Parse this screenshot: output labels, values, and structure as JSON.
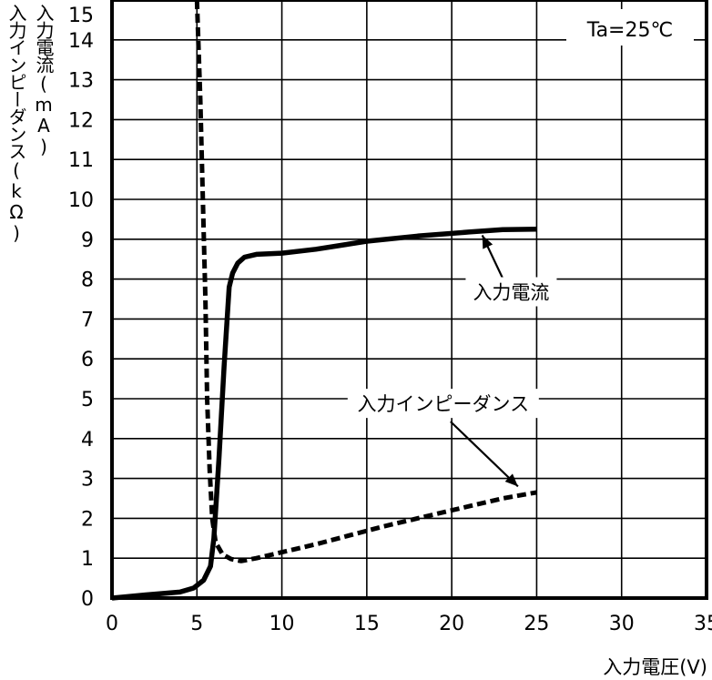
{
  "chart_data": {
    "type": "line",
    "xlabel": "入力電圧(V)",
    "ylabels": [
      "入力電流(mA)",
      "入力インピーダンス(kΩ)"
    ],
    "xlim": [
      0,
      35
    ],
    "ylim": [
      0,
      15
    ],
    "x_ticks": [
      "0",
      "5",
      "10",
      "15",
      "20",
      "25",
      "30",
      "35"
    ],
    "y_ticks": [
      "0",
      "1",
      "2",
      "3",
      "4",
      "5",
      "6",
      "7",
      "8",
      "9",
      "10",
      "11",
      "12",
      "13",
      "14",
      "15"
    ],
    "grid": true,
    "condition": "Ta=25℃",
    "series": [
      {
        "name": "入力電流",
        "style": "solid",
        "color": "#000000",
        "x": [
          0,
          2,
          4,
          4.8,
          5.4,
          5.8,
          6.0,
          6.3,
          6.6,
          6.9,
          7.1,
          7.4,
          7.8,
          8.5,
          10,
          12,
          15,
          18,
          21,
          23,
          25
        ],
        "y": [
          0,
          0.08,
          0.15,
          0.25,
          0.45,
          0.8,
          1.5,
          3.5,
          5.8,
          7.8,
          8.15,
          8.4,
          8.55,
          8.62,
          8.65,
          8.75,
          8.95,
          9.08,
          9.18,
          9.24,
          9.25
        ]
      },
      {
        "name": "入力インピーダンス",
        "style": "dashed",
        "color": "#000000",
        "x": [
          5.0,
          5.2,
          5.35,
          5.5,
          5.6,
          5.75,
          5.9,
          6.1,
          6.5,
          7.0,
          7.6,
          8.5,
          12,
          16,
          20,
          23,
          25
        ],
        "y": [
          15.0,
          12.5,
          10.0,
          7.5,
          5.0,
          3.2,
          2.0,
          1.4,
          1.1,
          0.98,
          0.93,
          1.0,
          1.35,
          1.8,
          2.2,
          2.5,
          2.65
        ]
      }
    ],
    "annotations": [
      {
        "text": "入力電流",
        "x": 23.5,
        "y": 7.5,
        "arrow_to": [
          21.8,
          9.1
        ]
      },
      {
        "text": "入力インピーダンス",
        "x": 19.5,
        "y": 4.7,
        "arrow_to": [
          23.9,
          2.8
        ]
      }
    ]
  }
}
